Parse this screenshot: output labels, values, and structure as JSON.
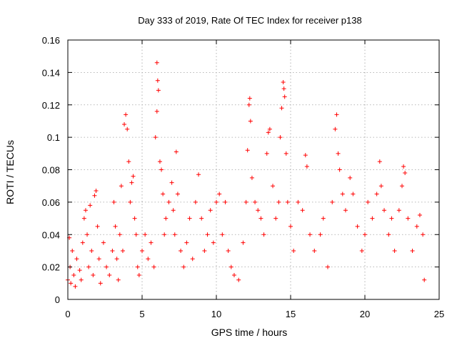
{
  "chart_data": {
    "type": "scatter",
    "title": "Day 333 of 2019, Rate Of TEC Index for receiver p138",
    "xlabel": "GPS time / hours",
    "ylabel": "ROTI / TECUs",
    "xlim": [
      0,
      25
    ],
    "ylim": [
      0,
      0.16
    ],
    "x_ticks": [
      0,
      5,
      10,
      15,
      20,
      25
    ],
    "y_ticks": [
      0,
      0.02,
      0.04,
      0.06,
      0.08,
      0.1,
      0.12,
      0.14,
      0.16
    ],
    "x_tick_labels": [
      "0",
      "5",
      "10",
      "15",
      "20",
      "25"
    ],
    "y_tick_labels": [
      "0",
      "0.02",
      "0.04",
      "0.06",
      "0.08",
      "0.1",
      "0.12",
      "0.14",
      "0.16"
    ],
    "grid": true,
    "marker": "+",
    "color": "#ff0000",
    "series": [
      {
        "points": [
          [
            0.0,
            0.012
          ],
          [
            0.1,
            0.038
          ],
          [
            0.15,
            0.02
          ],
          [
            0.2,
            0.01
          ],
          [
            0.3,
            0.03
          ],
          [
            0.4,
            0.015
          ],
          [
            0.5,
            0.008
          ],
          [
            0.6,
            0.025
          ],
          [
            0.8,
            0.018
          ],
          [
            0.9,
            0.012
          ],
          [
            1.0,
            0.035
          ],
          [
            1.1,
            0.05
          ],
          [
            1.2,
            0.055
          ],
          [
            1.3,
            0.04
          ],
          [
            1.4,
            0.02
          ],
          [
            1.5,
            0.058
          ],
          [
            1.6,
            0.03
          ],
          [
            1.7,
            0.015
          ],
          [
            1.8,
            0.064
          ],
          [
            1.9,
            0.067
          ],
          [
            2.0,
            0.045
          ],
          [
            2.1,
            0.025
          ],
          [
            2.2,
            0.01
          ],
          [
            2.4,
            0.035
          ],
          [
            2.6,
            0.02
          ],
          [
            2.8,
            0.015
          ],
          [
            3.0,
            0.03
          ],
          [
            3.1,
            0.06
          ],
          [
            3.2,
            0.045
          ],
          [
            3.3,
            0.025
          ],
          [
            3.4,
            0.012
          ],
          [
            3.5,
            0.04
          ],
          [
            3.6,
            0.07
          ],
          [
            3.7,
            0.03
          ],
          [
            3.8,
            0.108
          ],
          [
            3.9,
            0.114
          ],
          [
            4.0,
            0.105
          ],
          [
            4.1,
            0.085
          ],
          [
            4.2,
            0.06
          ],
          [
            4.3,
            0.072
          ],
          [
            4.4,
            0.076
          ],
          [
            4.5,
            0.05
          ],
          [
            4.6,
            0.04
          ],
          [
            4.7,
            0.02
          ],
          [
            4.8,
            0.015
          ],
          [
            5.0,
            0.03
          ],
          [
            5.2,
            0.04
          ],
          [
            5.4,
            0.025
          ],
          [
            5.6,
            0.035
          ],
          [
            5.8,
            0.02
          ],
          [
            5.9,
            0.1
          ],
          [
            6.0,
            0.146
          ],
          [
            6.05,
            0.135
          ],
          [
            6.1,
            0.129
          ],
          [
            6.0,
            0.116
          ],
          [
            6.2,
            0.085
          ],
          [
            6.3,
            0.08
          ],
          [
            6.4,
            0.065
          ],
          [
            6.5,
            0.04
          ],
          [
            6.6,
            0.05
          ],
          [
            6.8,
            0.06
          ],
          [
            7.0,
            0.072
          ],
          [
            7.1,
            0.055
          ],
          [
            7.2,
            0.04
          ],
          [
            7.3,
            0.091
          ],
          [
            7.4,
            0.065
          ],
          [
            7.6,
            0.03
          ],
          [
            7.8,
            0.02
          ],
          [
            8.0,
            0.035
          ],
          [
            8.2,
            0.05
          ],
          [
            8.4,
            0.025
          ],
          [
            8.6,
            0.06
          ],
          [
            8.8,
            0.077
          ],
          [
            9.0,
            0.05
          ],
          [
            9.2,
            0.03
          ],
          [
            9.4,
            0.04
          ],
          [
            9.6,
            0.055
          ],
          [
            9.8,
            0.035
          ],
          [
            10.0,
            0.06
          ],
          [
            10.2,
            0.065
          ],
          [
            10.4,
            0.04
          ],
          [
            10.6,
            0.06
          ],
          [
            10.8,
            0.03
          ],
          [
            11.0,
            0.02
          ],
          [
            11.2,
            0.015
          ],
          [
            11.5,
            0.012
          ],
          [
            11.8,
            0.035
          ],
          [
            12.0,
            0.06
          ],
          [
            12.1,
            0.092
          ],
          [
            12.2,
            0.12
          ],
          [
            12.25,
            0.124
          ],
          [
            12.3,
            0.11
          ],
          [
            12.4,
            0.075
          ],
          [
            12.6,
            0.06
          ],
          [
            12.8,
            0.055
          ],
          [
            13.0,
            0.05
          ],
          [
            13.2,
            0.04
          ],
          [
            13.4,
            0.09
          ],
          [
            13.5,
            0.103
          ],
          [
            13.6,
            0.105
          ],
          [
            13.8,
            0.07
          ],
          [
            14.0,
            0.05
          ],
          [
            14.2,
            0.06
          ],
          [
            14.3,
            0.1
          ],
          [
            14.4,
            0.118
          ],
          [
            14.5,
            0.134
          ],
          [
            14.55,
            0.13
          ],
          [
            14.6,
            0.125
          ],
          [
            14.7,
            0.09
          ],
          [
            14.8,
            0.06
          ],
          [
            15.0,
            0.045
          ],
          [
            15.2,
            0.03
          ],
          [
            15.5,
            0.06
          ],
          [
            15.8,
            0.055
          ],
          [
            16.0,
            0.089
          ],
          [
            16.1,
            0.082
          ],
          [
            16.3,
            0.04
          ],
          [
            16.6,
            0.03
          ],
          [
            17.0,
            0.04
          ],
          [
            17.2,
            0.05
          ],
          [
            17.5,
            0.02
          ],
          [
            17.8,
            0.06
          ],
          [
            18.0,
            0.105
          ],
          [
            18.1,
            0.114
          ],
          [
            18.2,
            0.09
          ],
          [
            18.3,
            0.08
          ],
          [
            18.5,
            0.065
          ],
          [
            18.7,
            0.055
          ],
          [
            19.0,
            0.075
          ],
          [
            19.2,
            0.065
          ],
          [
            19.5,
            0.045
          ],
          [
            19.8,
            0.03
          ],
          [
            20.0,
            0.04
          ],
          [
            20.2,
            0.06
          ],
          [
            20.5,
            0.05
          ],
          [
            20.8,
            0.065
          ],
          [
            21.0,
            0.085
          ],
          [
            21.1,
            0.07
          ],
          [
            21.3,
            0.055
          ],
          [
            21.6,
            0.04
          ],
          [
            21.8,
            0.05
          ],
          [
            22.0,
            0.03
          ],
          [
            22.3,
            0.055
          ],
          [
            22.5,
            0.07
          ],
          [
            22.6,
            0.082
          ],
          [
            22.7,
            0.078
          ],
          [
            22.9,
            0.05
          ],
          [
            23.2,
            0.03
          ],
          [
            23.5,
            0.045
          ],
          [
            23.7,
            0.052
          ],
          [
            23.9,
            0.04
          ],
          [
            24.0,
            0.012
          ]
        ]
      }
    ]
  }
}
